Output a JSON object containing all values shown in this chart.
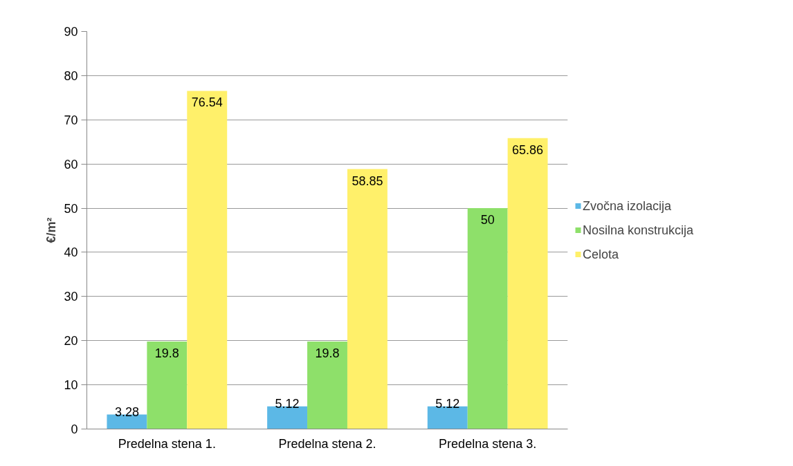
{
  "chart_data": {
    "type": "bar",
    "ylabel": "€/m²",
    "categories": [
      "Predelna stena 1.",
      "Predelna stena 2.",
      "Predelna stena 3."
    ],
    "series": [
      {
        "name": "Zvočna izolacija",
        "color": "#5cb8e6",
        "values": [
          3.28,
          5.12,
          5.12
        ]
      },
      {
        "name": "Nosilna konstrukcija",
        "color": "#8ee06a",
        "values": [
          19.8,
          19.8,
          50
        ]
      },
      {
        "name": "Celota",
        "color": "#fff06a",
        "values": [
          76.54,
          58.85,
          65.86
        ]
      }
    ],
    "ylim": [
      0,
      90
    ],
    "yticks": [
      0,
      10,
      20,
      30,
      40,
      50,
      60,
      70,
      80,
      90
    ],
    "grid": "y",
    "legend": "right",
    "data_labels": true
  }
}
